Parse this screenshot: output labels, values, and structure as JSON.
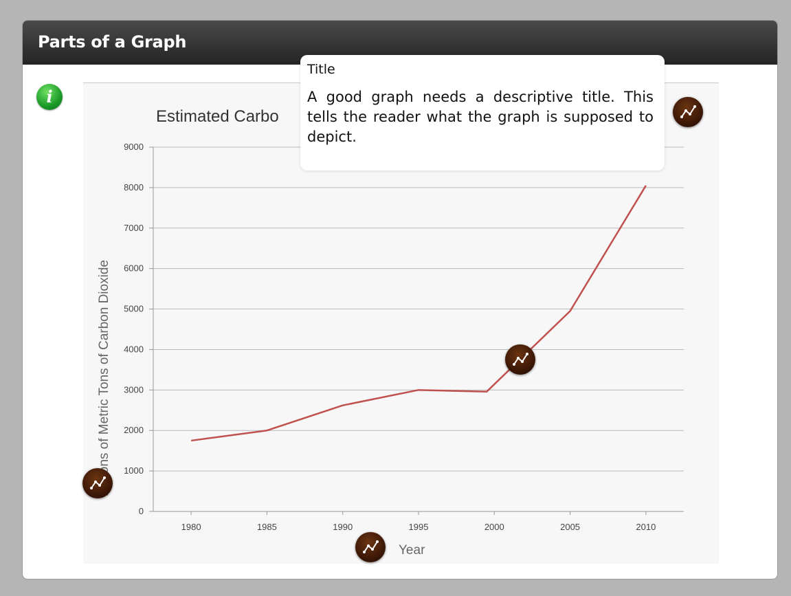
{
  "header": {
    "title": "Parts of a Graph"
  },
  "info_button": {
    "glyph": "i",
    "icon": "info-icon"
  },
  "tooltip": {
    "title": "Title",
    "body": "A good graph needs a descriptive title. This tells the reader what the graph is supposed to depict."
  },
  "hotspots": [
    {
      "name": "hotspot-title",
      "icon": "line-graph-icon"
    },
    {
      "name": "hotspot-data-line",
      "icon": "line-graph-icon"
    },
    {
      "name": "hotspot-y-axis",
      "icon": "line-graph-icon"
    },
    {
      "name": "hotspot-x-axis",
      "icon": "line-graph-icon"
    }
  ],
  "colors": {
    "line": "#c0504d",
    "hotspot": "#3a1606",
    "info": "#1b9a28"
  },
  "chart_data": {
    "type": "line",
    "title": "Estimated Carbo",
    "xlabel": "Year",
    "ylabel": "Millions of Metric Tons of Carbon Dioxide",
    "categories": [
      "1980",
      "1985",
      "1990",
      "1995",
      "2000",
      "2005",
      "2010"
    ],
    "x": [
      1980,
      1985,
      1990,
      1995,
      2000,
      2005,
      2010
    ],
    "points": [
      {
        "x": 1980,
        "y": 1750
      },
      {
        "x": 1985,
        "y": 2000
      },
      {
        "x": 1990,
        "y": 2620
      },
      {
        "x": 1995,
        "y": 3000
      },
      {
        "x": 1999.5,
        "y": 2960
      },
      {
        "x": 2005,
        "y": 4950
      },
      {
        "x": 2010,
        "y": 8050
      }
    ],
    "yticks": [
      0,
      1000,
      2000,
      3000,
      4000,
      5000,
      6000,
      7000,
      8000,
      9000
    ],
    "ylim": [
      0,
      9000
    ],
    "xlim": [
      1977.5,
      2012.5
    ],
    "grid": true
  }
}
